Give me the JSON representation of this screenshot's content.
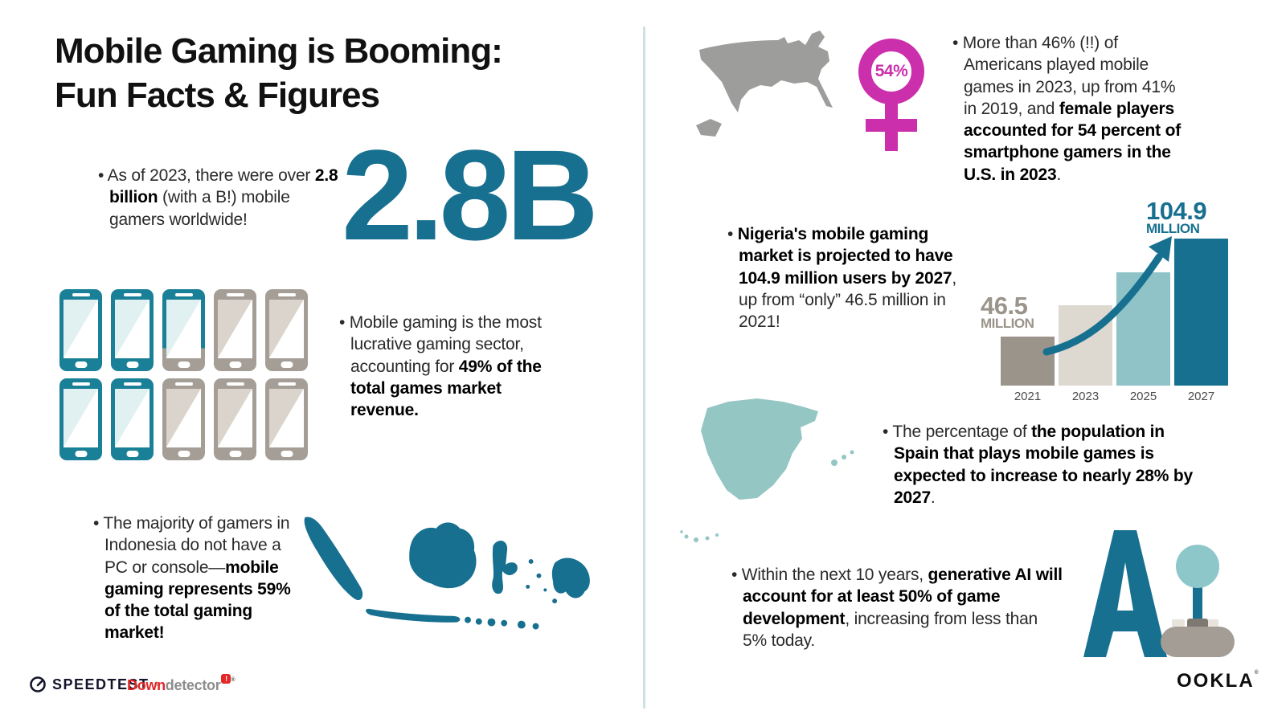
{
  "page": {
    "title_line1": "Mobile Gaming is Booming:",
    "title_line2": "Fun Facts & Figures"
  },
  "colors": {
    "dark_teal": "#17708f",
    "phone_teal": "#1a8097",
    "light_teal": "#8ec7ca",
    "spain_teal": "#94c6c4",
    "pink": "#cb2fac",
    "gray": "#9d9d9b",
    "warm_gray": "#a59e96",
    "beige": "#ddd8d0",
    "divider": "#cfe0e3",
    "down_red": "#e32726"
  },
  "facts": {
    "gamers": {
      "pre": "As of 2023, there were over ",
      "bold": "2.8 billion",
      "post": " (with a B!) mobile gamers worldwide!",
      "stat": "2.8B"
    },
    "revenue": {
      "pre": "Mobile gaming is the most lucrative gaming sector, accounting for ",
      "bold": "49% of the total games market revenue.",
      "post": ""
    },
    "indonesia": {
      "pre": "The majority of gamers in Indonesia do not have a PC or console—",
      "bold": "mobile gaming represents 59% of the total gaming market!",
      "post": ""
    },
    "usa": {
      "pre": "More than 46% (!!) of Americans played mobile games in 2023, up from 41% in 2019, and ",
      "bold": "female players accounted for 54 percent of smartphone gamers in the U.S. in 2023",
      "post": ".",
      "badge": "54%"
    },
    "nigeria": {
      "pre": "",
      "bold": "Nigeria's mobile gaming market is projected to have 104.9 million users by 2027",
      "post": ", up from “only” 46.5 million in 2021!"
    },
    "spain": {
      "pre": "The percentage of ",
      "bold": "the population in Spain that plays mobile games is expected to increase to nearly 28% by 2027",
      "post": "."
    },
    "ai": {
      "pre": "Within the next 10 years, ",
      "bold": "generative AI will account for at least 50% of game development",
      "post": ", increasing from less than 5% today."
    }
  },
  "phone_grid": {
    "pattern": [
      "full",
      "full",
      "partial",
      "empty",
      "empty",
      "full",
      "full",
      "empty",
      "empty",
      "empty"
    ],
    "meaning": "4.9 of 10 phones filled = 49% of games market revenue"
  },
  "chart_data": {
    "type": "bar",
    "title": "Nigeria mobile gaming market users",
    "categories": [
      "2021",
      "2023",
      "2025",
      "2027"
    ],
    "values": [
      46.5,
      65,
      85,
      104.9
    ],
    "unit": "million users",
    "value_labels": {
      "v2021_value": "46.5",
      "v2021_unit": "MILLION",
      "v2027_value": "104.9",
      "v2027_unit": "MILLION"
    },
    "bar_colors": [
      "#9a948b",
      "#ddd8d0",
      "#8fc3c7",
      "#17708f"
    ],
    "ylim": [
      0,
      110
    ],
    "grid": false,
    "legend": false,
    "note": "only 2021 and 2027 bars carry data labels; 2023/2025 estimated from bar heights; curved growth arrow from 2021 label to 2027 bar top"
  },
  "icons": [
    "speedtest-gauge-icon",
    "female-symbol-icon",
    "phone-icon",
    "us-map",
    "indonesia-map",
    "spain-map",
    "joystick-icon",
    "ai-letter",
    "growth-arrow-icon"
  ],
  "footer": {
    "speedtest": "SPEEDTEST",
    "down": "Down",
    "detector": "detector",
    "badge": "!",
    "reg": "®",
    "ookla": "OOKLA"
  }
}
